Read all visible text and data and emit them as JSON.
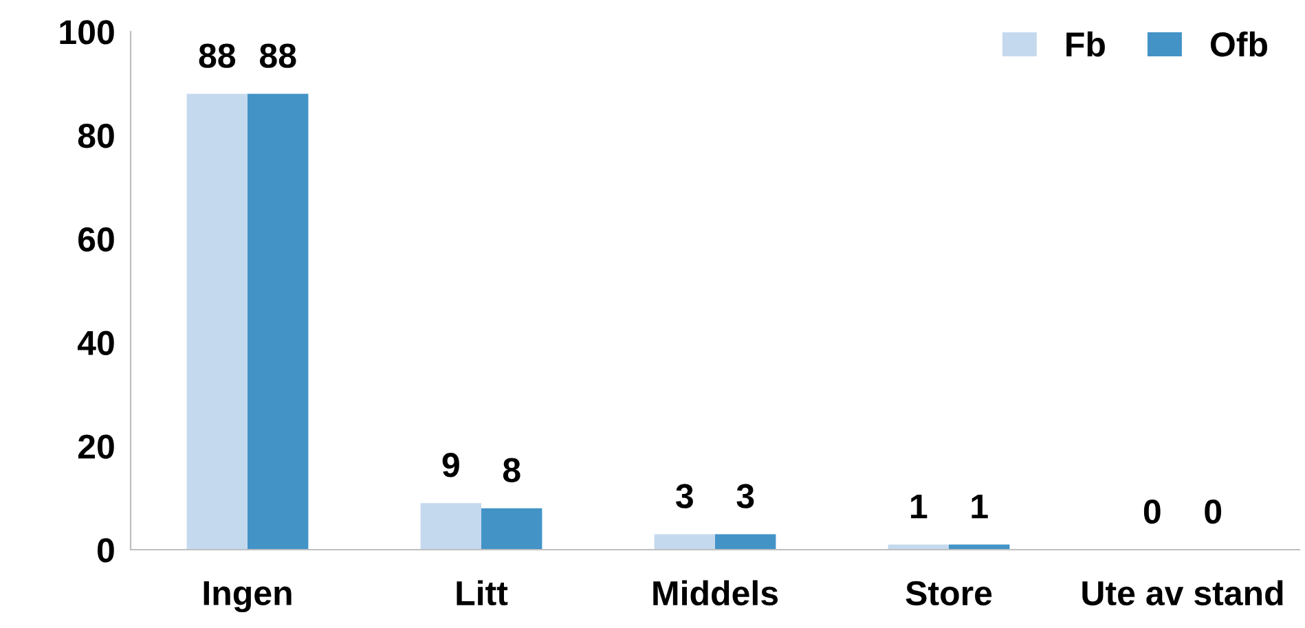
{
  "chart_data": {
    "type": "bar",
    "categories": [
      "Ingen",
      "Litt",
      "Middels",
      "Store",
      "Ute av stand"
    ],
    "series": [
      {
        "name": "Fb",
        "color": "#c5d9ee",
        "values": [
          88,
          9,
          3,
          1,
          0
        ]
      },
      {
        "name": "Ofb",
        "color": "#4393c7",
        "values": [
          88,
          8,
          3,
          1,
          0
        ]
      }
    ],
    "ylim": [
      0,
      100
    ],
    "yticks": [
      0,
      20,
      40,
      60,
      80,
      100
    ],
    "data_labels": true,
    "legend": "top right",
    "grid": false
  }
}
